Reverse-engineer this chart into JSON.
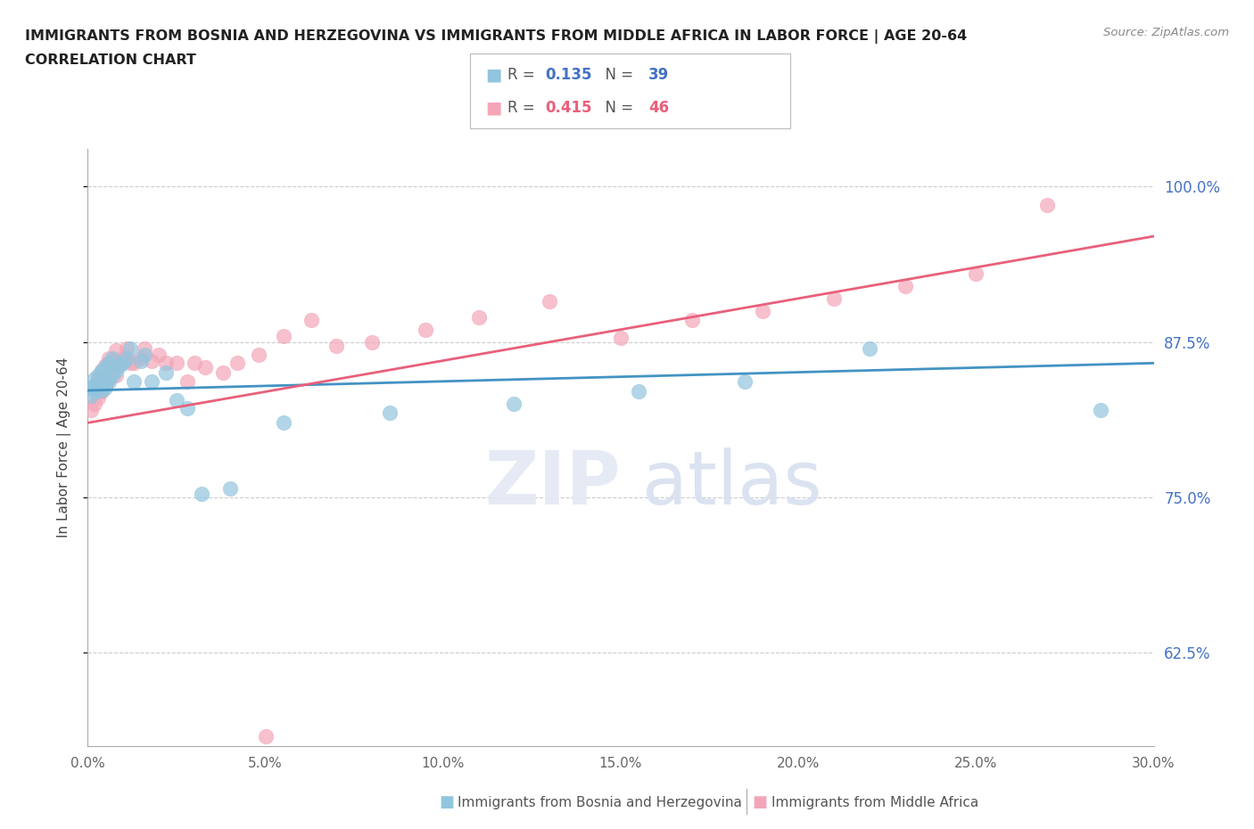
{
  "title_line1": "IMMIGRANTS FROM BOSNIA AND HERZEGOVINA VS IMMIGRANTS FROM MIDDLE AFRICA IN LABOR FORCE | AGE 20-64",
  "title_line2": "CORRELATION CHART",
  "source": "Source: ZipAtlas.com",
  "ylabel": "In Labor Force | Age 20-64",
  "xlim": [
    0.0,
    0.3
  ],
  "ylim": [
    0.55,
    1.03
  ],
  "yticks": [
    0.625,
    0.75,
    0.875,
    1.0
  ],
  "ytick_labels": [
    "62.5%",
    "75.0%",
    "87.5%",
    "100.0%"
  ],
  "xticks": [
    0.0,
    0.05,
    0.1,
    0.15,
    0.2,
    0.25,
    0.3
  ],
  "xtick_labels": [
    "0.0%",
    "5.0%",
    "10.0%",
    "15.0%",
    "20.0%",
    "25.0%",
    "30.0%"
  ],
  "color_blue": "#92c5de",
  "color_pink": "#f4a6b8",
  "color_line_blue": "#4393c3",
  "color_line_pink": "#e8607a",
  "R_blue": 0.135,
  "N_blue": 39,
  "R_pink": 0.415,
  "N_pink": 46,
  "legend_label_blue": "Immigrants from Bosnia and Herzegovina",
  "legend_label_pink": "Immigrants from Middle Africa",
  "blue_x": [
    0.001,
    0.001,
    0.002,
    0.002,
    0.002,
    0.003,
    0.003,
    0.003,
    0.004,
    0.004,
    0.004,
    0.005,
    0.005,
    0.005,
    0.006,
    0.006,
    0.007,
    0.007,
    0.008,
    0.009,
    0.01,
    0.011,
    0.012,
    0.013,
    0.015,
    0.016,
    0.018,
    0.022,
    0.025,
    0.028,
    0.032,
    0.04,
    0.055,
    0.085,
    0.12,
    0.155,
    0.185,
    0.22,
    0.285
  ],
  "blue_y": [
    0.832,
    0.838,
    0.835,
    0.84,
    0.845,
    0.838,
    0.842,
    0.848,
    0.836,
    0.84,
    0.852,
    0.838,
    0.844,
    0.855,
    0.843,
    0.858,
    0.848,
    0.862,
    0.852,
    0.856,
    0.858,
    0.862,
    0.87,
    0.843,
    0.86,
    0.865,
    0.843,
    0.85,
    0.828,
    0.822,
    0.753,
    0.757,
    0.81,
    0.818,
    0.825,
    0.835,
    0.843,
    0.87,
    0.82
  ],
  "pink_x": [
    0.001,
    0.002,
    0.002,
    0.003,
    0.003,
    0.004,
    0.004,
    0.005,
    0.005,
    0.006,
    0.006,
    0.007,
    0.008,
    0.008,
    0.009,
    0.01,
    0.011,
    0.012,
    0.013,
    0.015,
    0.016,
    0.018,
    0.02,
    0.022,
    0.025,
    0.028,
    0.03,
    0.033,
    0.038,
    0.042,
    0.048,
    0.055,
    0.063,
    0.07,
    0.08,
    0.095,
    0.11,
    0.13,
    0.15,
    0.17,
    0.19,
    0.21,
    0.23,
    0.25,
    0.27,
    0.05
  ],
  "pink_y": [
    0.82,
    0.825,
    0.838,
    0.83,
    0.845,
    0.835,
    0.852,
    0.84,
    0.856,
    0.845,
    0.862,
    0.855,
    0.848,
    0.868,
    0.858,
    0.862,
    0.87,
    0.858,
    0.858,
    0.862,
    0.87,
    0.86,
    0.865,
    0.858,
    0.858,
    0.843,
    0.858,
    0.855,
    0.85,
    0.858,
    0.865,
    0.88,
    0.893,
    0.872,
    0.875,
    0.885,
    0.895,
    0.908,
    0.878,
    0.893,
    0.9,
    0.91,
    0.92,
    0.93,
    0.985,
    0.558
  ],
  "blue_trend": [
    0.836,
    0.858
  ],
  "pink_trend": [
    0.81,
    0.96
  ],
  "watermark_zip": "ZIP",
  "watermark_atlas": "atlas"
}
